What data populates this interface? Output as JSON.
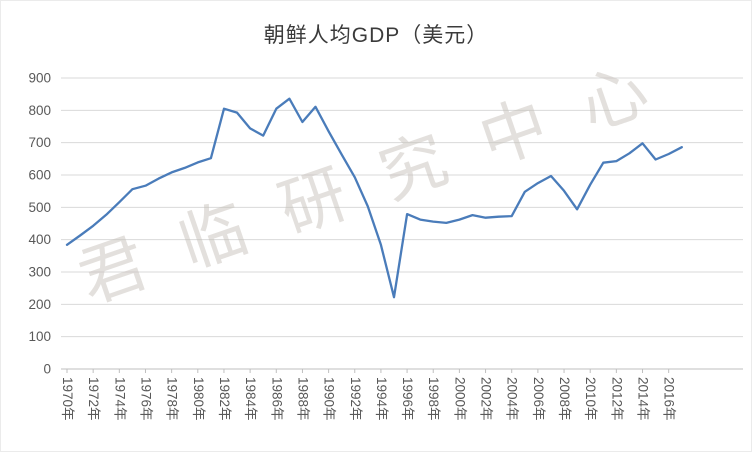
{
  "chart_data": {
    "type": "line",
    "title": "朝鲜人均GDP（美元）",
    "watermark": "君临研究中心",
    "x": [
      1970,
      1971,
      1972,
      1973,
      1974,
      1975,
      1976,
      1977,
      1978,
      1979,
      1980,
      1981,
      1982,
      1983,
      1984,
      1985,
      1986,
      1987,
      1988,
      1989,
      1990,
      1991,
      1992,
      1993,
      1994,
      1995,
      1996,
      1997,
      1998,
      1999,
      2000,
      2001,
      2002,
      2003,
      2004,
      2005,
      2006,
      2007,
      2008,
      2009,
      2010,
      2011,
      2012,
      2013,
      2014,
      2015,
      2016,
      2017
    ],
    "values": [
      384,
      413,
      443,
      477,
      516,
      556,
      567,
      589,
      608,
      622,
      639,
      652,
      805,
      793,
      744,
      722,
      805,
      836,
      764,
      811,
      735,
      663,
      593,
      503,
      384,
      222,
      479,
      462,
      456,
      452,
      462,
      476,
      468,
      471,
      473,
      548,
      575,
      597,
      551,
      494,
      570,
      638,
      643,
      667,
      698,
      648,
      665,
      686
    ],
    "xtick_labels": [
      "1970年",
      "1972年",
      "1974年",
      "1976年",
      "1978年",
      "1980年",
      "1982年",
      "1984年",
      "1986年",
      "1988年",
      "1990年",
      "1992年",
      "1994年",
      "1996年",
      "1998年",
      "2000年",
      "2002年",
      "2004年",
      "2006年",
      "2008年",
      "2010年",
      "2012年",
      "2014年",
      "2016年"
    ],
    "ytick_labels": [
      "0",
      "100",
      "200",
      "300",
      "400",
      "500",
      "600",
      "700",
      "800",
      "900"
    ],
    "ylim": [
      0,
      900
    ],
    "ytick_interval": 100,
    "xlabel": "",
    "ylabel": "",
    "grid": true,
    "legend": false,
    "line_color": "#4a7cba",
    "grid_color": "#d9d9d9",
    "axis_color": "#bfbfbf",
    "tick_label_color": "#595959",
    "title_color": "#3b3b3b",
    "watermark_color": "#c8c3bc"
  }
}
